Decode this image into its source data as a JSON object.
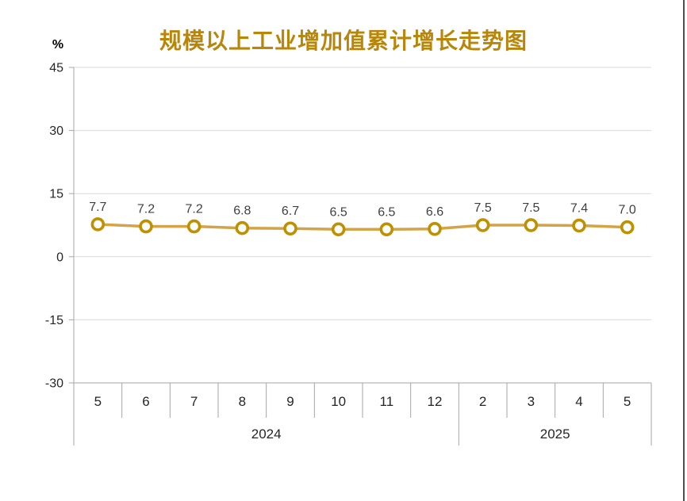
{
  "page": {
    "background": "#ffffff",
    "right_divider_color": "#4d4d4d"
  },
  "chart_data": {
    "type": "line",
    "title": "规模以上工业增加值累计增长走势图",
    "ylabel": "%",
    "xlabel": "",
    "ylim": [
      -30,
      45
    ],
    "y_ticks": [
      45,
      30,
      15,
      0,
      -15,
      -30
    ],
    "grid": true,
    "legend_position": "none",
    "categories": [
      "5",
      "6",
      "7",
      "8",
      "9",
      "10",
      "11",
      "12",
      "2",
      "3",
      "4",
      "5"
    ],
    "year_groups": [
      {
        "label": "2024",
        "span": 8
      },
      {
        "label": "2025",
        "span": 4
      }
    ],
    "values": [
      7.7,
      7.2,
      7.2,
      6.8,
      6.7,
      6.5,
      6.5,
      6.6,
      7.5,
      7.5,
      7.4,
      7.0
    ],
    "data_labels": [
      "7.7",
      "7.2",
      "7.2",
      "6.8",
      "6.7",
      "6.5",
      "6.5",
      "6.6",
      "7.5",
      "7.5",
      "7.4",
      "7.0"
    ],
    "colors": {
      "title": "#B8860B",
      "line": "#D4A347",
      "marker_stroke": "#BF9000",
      "marker_fill": "#FFFFFF",
      "gridline": "#D9D9D9",
      "axis_line": "#A6A6A6",
      "tick_label": "#262626",
      "data_label": "#404040"
    }
  }
}
